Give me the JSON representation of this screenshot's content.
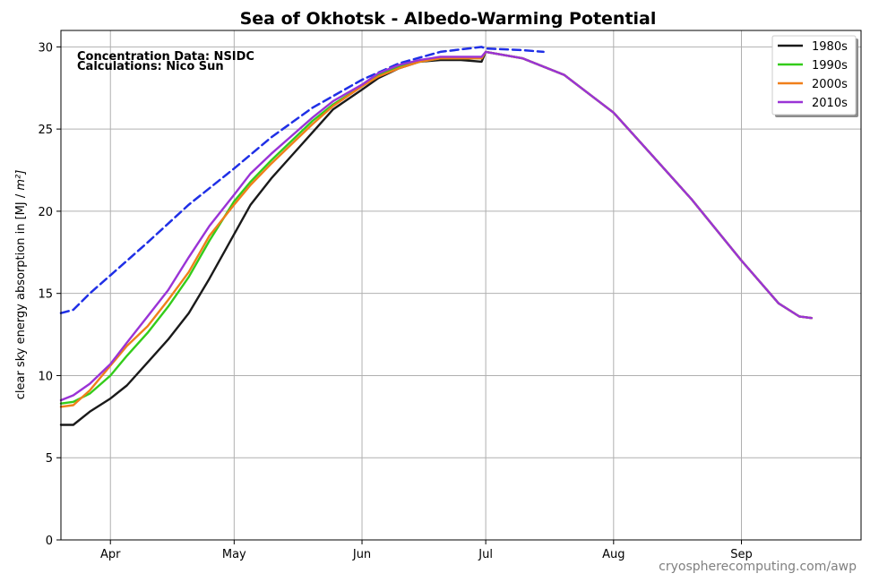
{
  "chart_data": {
    "type": "line",
    "title": "Sea of Okhotsk - Albedo-Warming Potential",
    "xlabel": "",
    "ylabel": "clear sky energy absorption in  [MJ / m²]",
    "ylim": [
      0,
      31
    ],
    "x_ticks": [
      "Apr",
      "May",
      "Jun",
      "Jul",
      "Aug",
      "Sep"
    ],
    "y_ticks": [
      0,
      5,
      10,
      15,
      20,
      25,
      30
    ],
    "grid": true,
    "legend_position": "top-right",
    "annotations": [
      "Concentration Data: NSIDC",
      "Calculations: Nico Sun"
    ],
    "credit": "cryospherecomputing.com/awp",
    "x_unit": "date (Mar 20 – Sep 30)",
    "series": [
      {
        "name": "1980s",
        "color": "#1a1a1a",
        "style": "solid",
        "points": [
          [
            "03-20",
            7.0
          ],
          [
            "03-23",
            7.0
          ],
          [
            "03-27",
            7.8
          ],
          [
            "04-01",
            8.6
          ],
          [
            "04-05",
            9.4
          ],
          [
            "04-10",
            10.8
          ],
          [
            "04-15",
            12.2
          ],
          [
            "04-20",
            13.8
          ],
          [
            "04-25",
            15.9
          ],
          [
            "05-01",
            18.6
          ],
          [
            "05-05",
            20.4
          ],
          [
            "05-10",
            22.0
          ],
          [
            "05-15",
            23.4
          ],
          [
            "05-20",
            24.8
          ],
          [
            "05-25",
            26.2
          ],
          [
            "06-01",
            27.4
          ],
          [
            "06-05",
            28.1
          ],
          [
            "06-10",
            28.7
          ],
          [
            "06-15",
            29.1
          ],
          [
            "06-20",
            29.2
          ],
          [
            "06-25",
            29.2
          ],
          [
            "06-30",
            29.1
          ],
          [
            "07-01",
            29.7
          ],
          [
            "07-10",
            29.3
          ],
          [
            "07-20",
            28.3
          ],
          [
            "08-01",
            26.0
          ],
          [
            "08-10",
            23.5
          ],
          [
            "08-20",
            20.7
          ],
          [
            "09-01",
            17.0
          ],
          [
            "09-10",
            14.4
          ],
          [
            "09-15",
            13.6
          ],
          [
            "09-18",
            13.5
          ]
        ]
      },
      {
        "name": "1990s",
        "color": "#33cc1a",
        "style": "solid",
        "points": [
          [
            "03-20",
            8.3
          ],
          [
            "03-23",
            8.4
          ],
          [
            "03-27",
            8.9
          ],
          [
            "04-01",
            10.0
          ],
          [
            "04-05",
            11.2
          ],
          [
            "04-10",
            12.6
          ],
          [
            "04-15",
            14.2
          ],
          [
            "04-20",
            16.0
          ],
          [
            "04-25",
            18.2
          ],
          [
            "05-01",
            20.6
          ],
          [
            "05-05",
            21.8
          ],
          [
            "05-10",
            23.1
          ],
          [
            "05-15",
            24.3
          ],
          [
            "05-20",
            25.5
          ],
          [
            "05-25",
            26.5
          ],
          [
            "06-01",
            27.6
          ],
          [
            "06-05",
            28.3
          ],
          [
            "06-10",
            28.8
          ],
          [
            "06-15",
            29.1
          ],
          [
            "06-20",
            29.3
          ],
          [
            "06-25",
            29.3
          ],
          [
            "06-30",
            29.3
          ],
          [
            "07-01",
            29.7
          ],
          [
            "07-10",
            29.3
          ],
          [
            "07-20",
            28.3
          ],
          [
            "08-01",
            26.0
          ],
          [
            "08-10",
            23.5
          ],
          [
            "08-20",
            20.7
          ],
          [
            "09-01",
            17.0
          ],
          [
            "09-10",
            14.4
          ],
          [
            "09-15",
            13.6
          ],
          [
            "09-18",
            13.5
          ]
        ]
      },
      {
        "name": "2000s",
        "color": "#f07f1a",
        "style": "solid",
        "points": [
          [
            "03-20",
            8.1
          ],
          [
            "03-23",
            8.2
          ],
          [
            "03-27",
            9.1
          ],
          [
            "04-01",
            10.6
          ],
          [
            "04-05",
            11.8
          ],
          [
            "04-10",
            13.0
          ],
          [
            "04-15",
            14.6
          ],
          [
            "04-20",
            16.3
          ],
          [
            "04-25",
            18.5
          ],
          [
            "05-01",
            20.4
          ],
          [
            "05-05",
            21.6
          ],
          [
            "05-10",
            22.9
          ],
          [
            "05-15",
            24.1
          ],
          [
            "05-20",
            25.3
          ],
          [
            "05-25",
            26.4
          ],
          [
            "06-01",
            27.6
          ],
          [
            "06-05",
            28.2
          ],
          [
            "06-10",
            28.7
          ],
          [
            "06-15",
            29.1
          ],
          [
            "06-20",
            29.3
          ],
          [
            "06-25",
            29.3
          ],
          [
            "06-30",
            29.3
          ],
          [
            "07-01",
            29.7
          ],
          [
            "07-10",
            29.3
          ],
          [
            "07-20",
            28.3
          ],
          [
            "08-01",
            26.0
          ],
          [
            "08-10",
            23.5
          ],
          [
            "08-20",
            20.7
          ],
          [
            "09-01",
            17.0
          ],
          [
            "09-10",
            14.4
          ],
          [
            "09-15",
            13.6
          ],
          [
            "09-18",
            13.5
          ]
        ]
      },
      {
        "name": "2010s",
        "color": "#9a33d6",
        "style": "solid",
        "points": [
          [
            "03-20",
            8.5
          ],
          [
            "03-23",
            8.8
          ],
          [
            "03-27",
            9.5
          ],
          [
            "04-01",
            10.7
          ],
          [
            "04-05",
            12.0
          ],
          [
            "04-10",
            13.6
          ],
          [
            "04-15",
            15.2
          ],
          [
            "04-20",
            17.2
          ],
          [
            "04-25",
            19.1
          ],
          [
            "05-01",
            21.0
          ],
          [
            "05-05",
            22.3
          ],
          [
            "05-10",
            23.5
          ],
          [
            "05-15",
            24.6
          ],
          [
            "05-20",
            25.7
          ],
          [
            "05-25",
            26.7
          ],
          [
            "06-01",
            27.7
          ],
          [
            "06-05",
            28.4
          ],
          [
            "06-10",
            28.9
          ],
          [
            "06-15",
            29.2
          ],
          [
            "06-20",
            29.4
          ],
          [
            "06-25",
            29.4
          ],
          [
            "06-30",
            29.4
          ],
          [
            "07-01",
            29.7
          ],
          [
            "07-10",
            29.3
          ],
          [
            "07-20",
            28.3
          ],
          [
            "08-01",
            26.0
          ],
          [
            "08-10",
            23.5
          ],
          [
            "08-20",
            20.7
          ],
          [
            "09-01",
            17.0
          ],
          [
            "09-10",
            14.4
          ],
          [
            "09-15",
            13.6
          ],
          [
            "09-18",
            13.5
          ]
        ]
      },
      {
        "name": "",
        "color": "#1f2fe6",
        "style": "dashed",
        "points": [
          [
            "03-20",
            13.8
          ],
          [
            "03-23",
            14.0
          ],
          [
            "03-27",
            15.0
          ],
          [
            "04-01",
            16.1
          ],
          [
            "04-10",
            18.1
          ],
          [
            "04-20",
            20.4
          ],
          [
            "05-01",
            22.6
          ],
          [
            "05-10",
            24.5
          ],
          [
            "05-20",
            26.3
          ],
          [
            "06-01",
            28.0
          ],
          [
            "06-10",
            29.0
          ],
          [
            "06-20",
            29.7
          ],
          [
            "06-30",
            30.0
          ],
          [
            "07-01",
            29.9
          ],
          [
            "07-10",
            29.8
          ],
          [
            "07-15",
            29.7
          ]
        ]
      }
    ]
  }
}
